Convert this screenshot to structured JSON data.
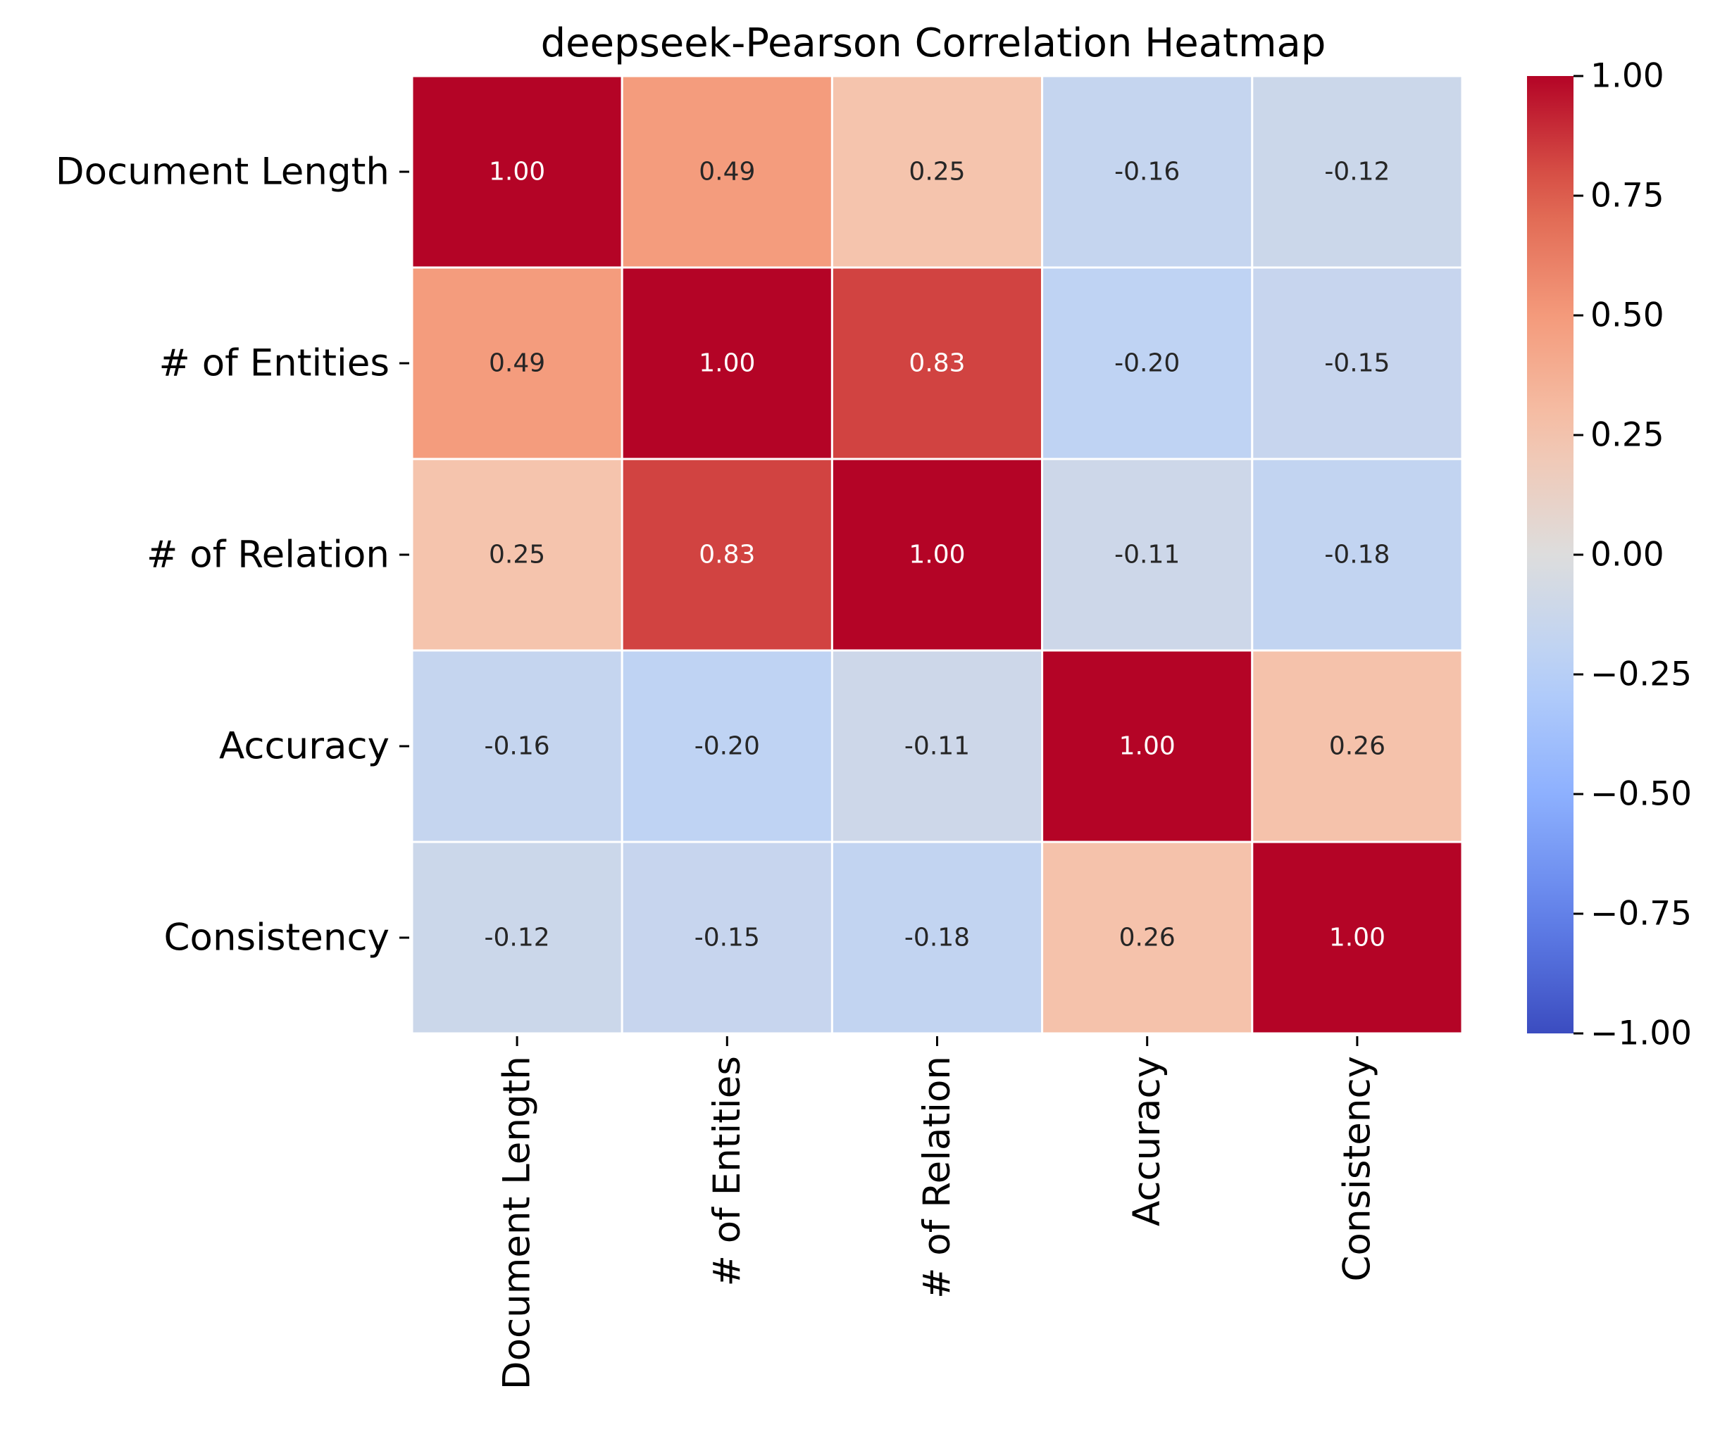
{
  "chart_data": {
    "type": "heatmap",
    "title": "deepseek-Pearson Correlation Heatmap",
    "xlabel": "",
    "ylabel": "",
    "rows": [
      "Document Length",
      "# of Entities",
      "# of Relation",
      "Accuracy",
      "Consistency"
    ],
    "columns": [
      "Document Length",
      "# of Entities",
      "# of Relation",
      "Accuracy",
      "Consistency"
    ],
    "values": [
      [
        1.0,
        0.49,
        0.25,
        -0.16,
        -0.12
      ],
      [
        0.49,
        1.0,
        0.83,
        -0.2,
        -0.15
      ],
      [
        0.25,
        0.83,
        1.0,
        -0.11,
        -0.18
      ],
      [
        -0.16,
        -0.2,
        -0.11,
        1.0,
        0.26
      ],
      [
        -0.12,
        -0.15,
        -0.18,
        0.26,
        1.0
      ]
    ],
    "value_labels": [
      [
        "1.00",
        "0.49",
        "0.25",
        "-0.16",
        "-0.12"
      ],
      [
        "0.49",
        "1.00",
        "0.83",
        "-0.20",
        "-0.15"
      ],
      [
        "0.25",
        "0.83",
        "1.00",
        "-0.11",
        "-0.18"
      ],
      [
        "-0.16",
        "-0.20",
        "-0.11",
        "1.00",
        "0.26"
      ],
      [
        "-0.12",
        "-0.15",
        "-0.18",
        "0.26",
        "1.00"
      ]
    ],
    "colormap": "coolwarm",
    "color_range": [
      -1.0,
      1.0
    ],
    "colorbar_ticks": [
      1.0,
      0.75,
      0.5,
      0.25,
      0.0,
      -0.25,
      -0.5,
      -0.75,
      -1.0
    ],
    "colorbar_tick_labels": [
      "1.00",
      "0.75",
      "0.50",
      "0.25",
      "0.00",
      "−0.25",
      "−0.50",
      "−0.75",
      "−1.00"
    ],
    "colorbar_position": "right",
    "grid": false
  }
}
